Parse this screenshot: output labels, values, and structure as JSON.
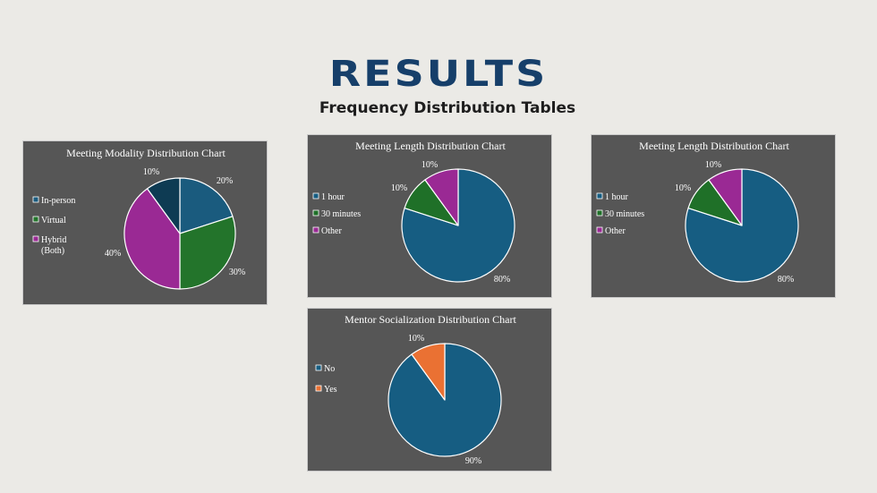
{
  "page": {
    "title": "RESULTS",
    "subtitle": "Frequency Distribution Tables"
  },
  "chart_data": [
    {
      "type": "pie",
      "title": "Meeting Modality Distribution Chart",
      "categories": [
        "In-person",
        "Virtual",
        "Hybrid (Both)",
        ""
      ],
      "legend": [
        "In-person",
        "Virtual",
        "Hybrid",
        "(Both)"
      ],
      "values": [
        20,
        30,
        40,
        10
      ],
      "labels": [
        "20%",
        "30%",
        "40%",
        "10%"
      ],
      "colors": [
        "#1a5b7e",
        "#23742b",
        "#9a2994",
        "#0e3b53"
      ],
      "legend_position": "left"
    },
    {
      "type": "pie",
      "title": "Meeting  Length Distribution Chart",
      "categories": [
        "1 hour",
        "30 minutes",
        "Other"
      ],
      "values": [
        80,
        10,
        10
      ],
      "labels": [
        "80%",
        "10%",
        "10%"
      ],
      "colors": [
        "#165d82",
        "#1f7028",
        "#9a2994"
      ],
      "legend_position": "left"
    },
    {
      "type": "pie",
      "title": "Meeting  Length Distribution Chart",
      "categories": [
        "1 hour",
        "30 minutes",
        "Other"
      ],
      "values": [
        80,
        10,
        10
      ],
      "labels": [
        "80%",
        "10%",
        "10%"
      ],
      "colors": [
        "#165d82",
        "#1f7028",
        "#9a2994"
      ],
      "legend_position": "left"
    },
    {
      "type": "pie",
      "title": "Mentor Socialization Distribution Chart",
      "categories": [
        "No",
        "Yes"
      ],
      "values": [
        90,
        10
      ],
      "labels": [
        "90%",
        "10%"
      ],
      "colors": [
        "#165d82",
        "#ea7133"
      ],
      "legend_position": "left"
    }
  ]
}
